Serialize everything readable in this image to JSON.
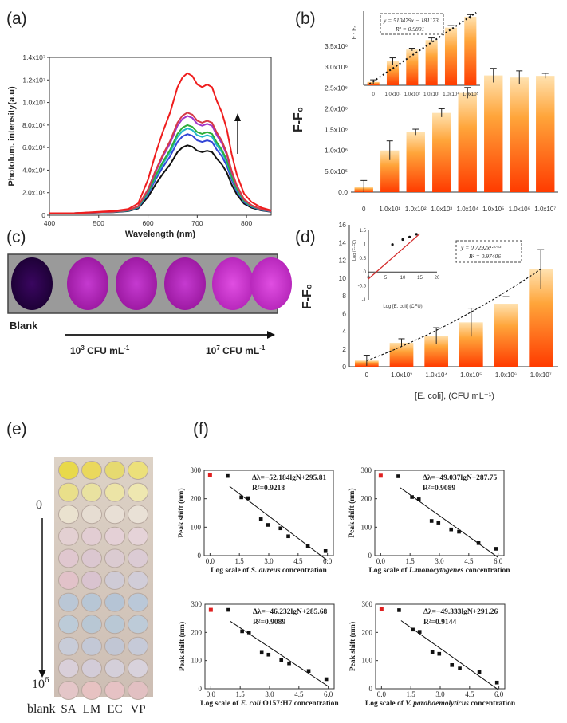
{
  "panels": {
    "a": "(a)",
    "b": "(b)",
    "c": "(c)",
    "d": "(d)",
    "e": "(e)",
    "f": "(f)"
  },
  "photo_c": {
    "blank_label": "Blank",
    "low_label": "10",
    "low_exp": "3",
    "low_unit": " CFU mL",
    "high_label": "10",
    "high_exp": "7",
    "high_unit": " CFU mL",
    "unit_exp": "-1"
  },
  "photo_e": {
    "top_label": "0",
    "bottom_label": "10",
    "bottom_exp": "6",
    "blank_label": "blank",
    "columns": [
      "SA",
      "LM",
      "EC",
      "VP"
    ]
  },
  "chart_data": [
    {
      "id": "a",
      "type": "line",
      "xlabel": "Wavelength (nm)",
      "ylabel": "Photolum. intensity(a.u)",
      "xlim": [
        400,
        850
      ],
      "ylim": [
        0,
        14000000
      ],
      "xticks": [
        "400",
        "500",
        "600",
        "700",
        "800"
      ],
      "yticks": [
        "0",
        "2.0x10⁶",
        "4.0x10⁶",
        "6.0x10⁶",
        "8.0x10⁶",
        "1.0x10⁷",
        "1.2x10⁷",
        "1.4x10⁷"
      ],
      "shape_x": [
        400,
        450,
        500,
        530,
        560,
        580,
        600,
        615,
        630,
        645,
        660,
        670,
        680,
        690,
        700,
        710,
        720,
        730,
        740,
        750,
        760,
        770,
        780,
        795,
        810,
        830,
        850
      ],
      "shape_y": [
        0.0,
        0.0,
        0.01,
        0.015,
        0.03,
        0.07,
        0.24,
        0.42,
        0.58,
        0.72,
        0.9,
        0.97,
        1.0,
        0.98,
        0.92,
        0.9,
        0.92,
        0.9,
        0.8,
        0.72,
        0.6,
        0.42,
        0.28,
        0.14,
        0.08,
        0.04,
        0.02
      ],
      "series": [
        {
          "color": "#111111",
          "peak": 6200000
        },
        {
          "color": "#3346d6",
          "peak": 7200000
        },
        {
          "color": "#22b7c9",
          "peak": 7700000
        },
        {
          "color": "#2fae3a",
          "peak": 8000000
        },
        {
          "color": "#a136c8",
          "peak": 8800000
        },
        {
          "color": "#d63a47",
          "peak": 9100000
        },
        {
          "color": "#ef1d1d",
          "peak": 12600000
        }
      ],
      "arrow": "up"
    },
    {
      "id": "b",
      "type": "bar",
      "ylabel": "F-F₀",
      "categories": [
        "0",
        "1.0x10¹",
        "1.0x10²",
        "1.0x10³",
        "1.0x10⁴",
        "1.0x10⁵",
        "1.0x10⁶",
        "1.0x10⁷"
      ],
      "values": [
        120000,
        1000000,
        1440000,
        1900000,
        2380000,
        2800000,
        2750000,
        2790000
      ],
      "errors": [
        160000,
        230000,
        70000,
        100000,
        130000,
        170000,
        160000,
        60000
      ],
      "ylim": [
        0,
        3500000
      ],
      "yticks": [
        "0.0",
        "5.0x10⁵",
        "1.0x10⁶",
        "1.5x10⁶",
        "2.0x10⁶",
        "2.5x10⁶",
        "3.0x10⁶",
        "3.5x10⁶"
      ],
      "inset": {
        "ylabel": "F - F₀",
        "categories": [
          "0",
          "1.0x10¹",
          "1.0x10²",
          "1.0x10³",
          "1.0x10⁴",
          "1.0x10⁵"
        ],
        "values": [
          0.05,
          0.35,
          0.52,
          0.66,
          0.84,
          1.0
        ],
        "errors": [
          0.03,
          0.05,
          0.02,
          0.03,
          0.03,
          0.03
        ],
        "equation": "y = 510479x − 181173",
        "r2": "R² = 0.9801"
      }
    },
    {
      "id": "d",
      "type": "bar",
      "ylabel": "F-F₀",
      "xlabel": "[E. coli], (CFU mL⁻¹)",
      "categories": [
        "0",
        "1.0x10³",
        "1.0x10⁴",
        "1.0x10⁵",
        "1.0x10⁶",
        "1.0x10⁷"
      ],
      "values": [
        0.7,
        2.7,
        3.5,
        5.0,
        7.1,
        11.0
      ],
      "errors": [
        0.6,
        0.45,
        0.9,
        1.6,
        0.8,
        2.2
      ],
      "ylim": [
        0,
        16
      ],
      "yticks": [
        "0",
        "2",
        "4",
        "6",
        "8",
        "10",
        "12",
        "14",
        "16"
      ],
      "inset": {
        "xlabel": "Log [E. coli] (CFU)",
        "ylabel": "Log (F-F0)",
        "xlim": [
          0,
          20
        ],
        "ylim": [
          -1,
          1.5
        ],
        "xticks": [
          "0",
          "5",
          "10",
          "15",
          "20"
        ],
        "yticks": [
          "-1",
          "-0.5",
          "0",
          "0.5",
          "1",
          "1.5"
        ],
        "points": [
          [
            7,
            0.99
          ],
          [
            10,
            1.17
          ],
          [
            12,
            1.26
          ],
          [
            14,
            1.36
          ]
        ],
        "fit": [
          [
            0,
            -0.25
          ],
          [
            15,
            1.38
          ]
        ],
        "equation": "y = 0.7292x¹·⁴⁷⁶³",
        "r2": "R² = 0.97406"
      }
    },
    {
      "id": "f1",
      "type": "scatter",
      "ylabel": "Peak shift (nm)",
      "xlabel_pre": "Log scale of ",
      "xlabel_organism": "S. aureus",
      "xlabel_post": " concentration",
      "equation": "Δλ=−52.184lgN+295.81",
      "r2": "R²=0.9218",
      "xlim": [
        -0.3,
        6.3
      ],
      "ylim": [
        0,
        300
      ],
      "xticks": [
        "0.0",
        "1.5",
        "3.0",
        "4.5",
        "6.0"
      ],
      "yticks": [
        "0",
        "100",
        "200",
        "300"
      ],
      "blank": [
        0.0,
        284
      ],
      "points": [
        [
          0.9,
          280
        ],
        [
          1.6,
          205
        ],
        [
          1.95,
          202
        ],
        [
          2.6,
          128
        ],
        [
          2.95,
          108
        ],
        [
          3.6,
          96
        ],
        [
          4.0,
          68
        ],
        [
          5.0,
          34
        ],
        [
          5.9,
          16
        ]
      ],
      "fit": [
        [
          1.0,
          243.6
        ],
        [
          6.0,
          -17.3
        ]
      ]
    },
    {
      "id": "f2",
      "type": "scatter",
      "ylabel": "Peak shift (nm)",
      "xlabel_pre": "Log scale of ",
      "xlabel_organism": "L.monocytogenes",
      "xlabel_post": " concentration",
      "equation": "Δλ=−49.037lgN+287.75",
      "r2": "R²=0.9089",
      "xlim": [
        -0.3,
        6.3
      ],
      "ylim": [
        0,
        300
      ],
      "xticks": [
        "0.0",
        "1.5",
        "3.0",
        "4.5",
        "6.0"
      ],
      "yticks": [
        "0",
        "100",
        "200",
        "300"
      ],
      "blank": [
        0.0,
        281
      ],
      "points": [
        [
          0.9,
          279
        ],
        [
          1.6,
          206
        ],
        [
          1.95,
          198
        ],
        [
          2.6,
          122
        ],
        [
          2.95,
          116
        ],
        [
          3.6,
          92
        ],
        [
          4.0,
          84
        ],
        [
          5.0,
          44
        ],
        [
          5.9,
          24
        ]
      ],
      "fit": [
        [
          1.0,
          238.7
        ],
        [
          6.0,
          -6.5
        ]
      ]
    },
    {
      "id": "f3",
      "type": "scatter",
      "ylabel": "Peak shift (nm)",
      "xlabel_pre": "Log scale of ",
      "xlabel_organism": "E. coli",
      "xlabel_post": " O157:H7 concentration",
      "equation": "Δλ=−46.232lgN+285.68",
      "r2": "R²=0.9089",
      "xlim": [
        -0.3,
        6.3
      ],
      "ylim": [
        0,
        300
      ],
      "xticks": [
        "0.0",
        "1.5",
        "3.0",
        "4.5",
        "6.0"
      ],
      "yticks": [
        "0",
        "100",
        "200",
        "300"
      ],
      "blank": [
        0.0,
        280
      ],
      "points": [
        [
          0.9,
          280
        ],
        [
          1.6,
          204
        ],
        [
          1.95,
          200
        ],
        [
          2.6,
          128
        ],
        [
          2.95,
          121
        ],
        [
          3.6,
          102
        ],
        [
          4.0,
          90
        ],
        [
          5.0,
          63
        ],
        [
          5.9,
          34
        ]
      ],
      "fit": [
        [
          1.0,
          239.4
        ],
        [
          6.0,
          8.3
        ]
      ]
    },
    {
      "id": "f4",
      "type": "scatter",
      "ylabel": "Peak shift (nm)",
      "xlabel_pre": "Log scale of ",
      "xlabel_organism": "V. parahaemolyticus",
      "xlabel_post": " concentration",
      "equation": "Δλ=−49.333lgN+291.26",
      "r2": "R²=0.9144",
      "xlim": [
        -0.3,
        6.3
      ],
      "ylim": [
        0,
        300
      ],
      "xticks": [
        "0.0",
        "1.5",
        "3.0",
        "4.5",
        "6.0"
      ],
      "yticks": [
        "0",
        "100",
        "200",
        "300"
      ],
      "blank": [
        0.0,
        282
      ],
      "points": [
        [
          0.9,
          279
        ],
        [
          1.6,
          210
        ],
        [
          1.95,
          202
        ],
        [
          2.6,
          130
        ],
        [
          2.95,
          124
        ],
        [
          3.6,
          84
        ],
        [
          4.0,
          72
        ],
        [
          5.0,
          60
        ],
        [
          5.9,
          22
        ]
      ],
      "fit": [
        [
          1.0,
          241.9
        ],
        [
          6.0,
          -4.7
        ]
      ]
    }
  ]
}
